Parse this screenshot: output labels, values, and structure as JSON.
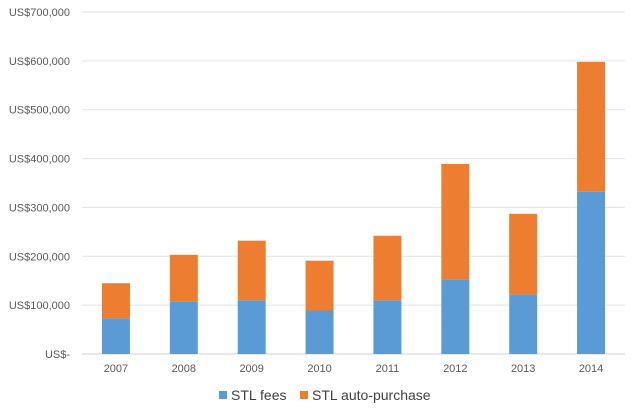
{
  "chart_data": {
    "type": "bar",
    "stacked": true,
    "title": "",
    "xlabel": "",
    "ylabel": "",
    "categories": [
      "2007",
      "2008",
      "2009",
      "2010",
      "2011",
      "2012",
      "2013",
      "2014"
    ],
    "series": [
      {
        "name": "STL fees",
        "color": "#5B9BD5",
        "values": [
          73000,
          108000,
          110000,
          89000,
          110000,
          153000,
          122000,
          332000
        ]
      },
      {
        "name": "STL auto-purchase",
        "color": "#ED7D31",
        "values": [
          72000,
          95000,
          122000,
          102000,
          132000,
          236000,
          165000,
          266000
        ]
      }
    ],
    "ylim": [
      0,
      700000
    ],
    "ytick_values": [
      0,
      100000,
      200000,
      300000,
      400000,
      500000,
      600000,
      700000
    ],
    "ytick_labels": [
      "US$-",
      "US$100,000",
      "US$200,000",
      "US$300,000",
      "US$400,000",
      "US$500,000",
      "US$600,000",
      "US$700,000"
    ],
    "grid": true,
    "legend_position": "bottom"
  }
}
